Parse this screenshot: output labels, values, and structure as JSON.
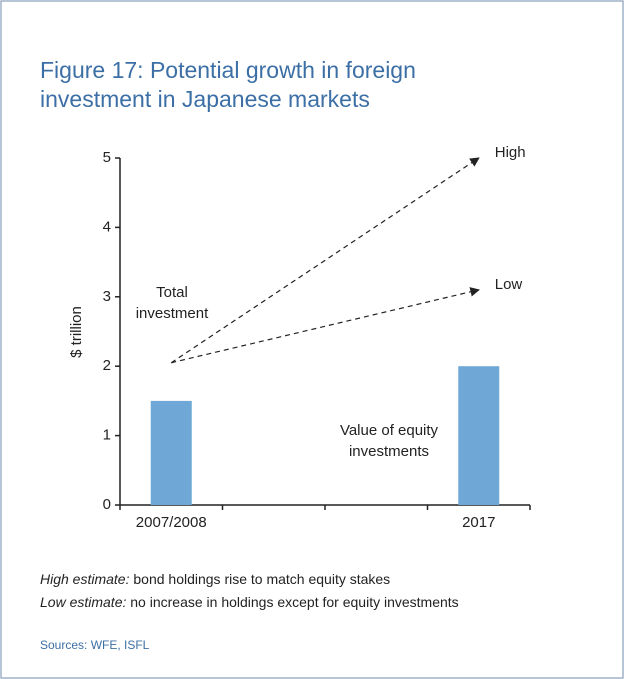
{
  "chart_data": {
    "type": "bar",
    "title_lines": [
      "Figure 17: Potential growth in foreign",
      "investment in Japanese markets"
    ],
    "y_label": "$ trillion",
    "categories": [
      "2007/2008",
      null,
      null,
      "2017"
    ],
    "values": [
      1.5,
      null,
      null,
      2.0
    ],
    "color": "#6fa8d6",
    "ylim": [
      0,
      5
    ],
    "yticks": [
      0,
      1,
      2,
      3,
      4,
      5
    ],
    "projections": [
      {
        "label": "High",
        "start": 2.05,
        "end": 5.0
      },
      {
        "label": "Low",
        "start": 2.05,
        "end": 3.1
      }
    ],
    "annotations": {
      "total": [
        "Total",
        "investment"
      ],
      "equity": [
        "Value of equity",
        "investments"
      ]
    },
    "notes": [
      {
        "lead": "High estimate:",
        "text": " bond holdings rise to match equity stakes"
      },
      {
        "lead": "Low estimate:",
        "text": " no increase in holdings except for equity investments"
      }
    ],
    "source": "Sources: WFE, ISFL"
  }
}
